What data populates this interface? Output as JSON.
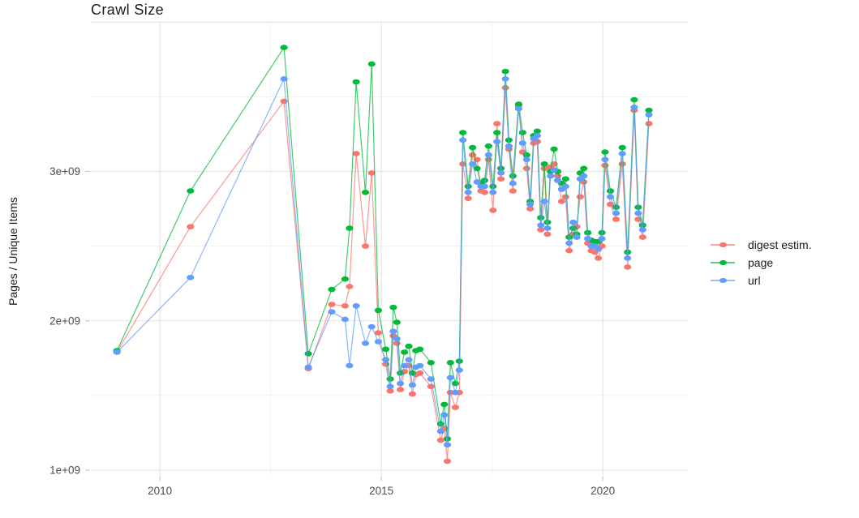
{
  "title": "Crawl Size",
  "chart_data": {
    "type": "line",
    "title": "Crawl Size",
    "xlabel": "",
    "ylabel": "Pages / Unique Items",
    "legend_position": "right",
    "grid": true,
    "x_ticks": [
      {
        "value": 2010,
        "label": "2010"
      },
      {
        "value": 2015,
        "label": "2015"
      },
      {
        "value": 2020,
        "label": "2020"
      }
    ],
    "y_ticks": [
      {
        "value": 1,
        "label": "1e+09"
      },
      {
        "value": 2,
        "label": "2e+09"
      },
      {
        "value": 3,
        "label": "3e+09"
      }
    ],
    "x_minor": [
      2012.5,
      2017.5
    ],
    "y_minor": [
      1.5,
      2.5,
      3.5
    ],
    "y_major_unlabeled": [
      4.0
    ],
    "xlim": [
      2008.44,
      2021.92
    ],
    "ylim_e9": [
      0.962,
      3.996
    ],
    "y_unit": "1e9",
    "x": [
      2009.03,
      2010.69,
      2012.8,
      2013.35,
      2013.88,
      2014.18,
      2014.28,
      2014.43,
      2014.64,
      2014.78,
      2014.93,
      2015.1,
      2015.2,
      2015.27,
      2015.35,
      2015.43,
      2015.52,
      2015.62,
      2015.7,
      2015.78,
      2015.87,
      2016.12,
      2016.34,
      2016.42,
      2016.49,
      2016.56,
      2016.67,
      2016.76,
      2016.84,
      2016.96,
      2017.06,
      2017.16,
      2017.25,
      2017.33,
      2017.42,
      2017.52,
      2017.61,
      2017.7,
      2017.8,
      2017.88,
      2017.97,
      2018.1,
      2018.19,
      2018.28,
      2018.36,
      2018.44,
      2018.52,
      2018.6,
      2018.68,
      2018.75,
      2018.82,
      2018.9,
      2018.98,
      2019.07,
      2019.16,
      2019.24,
      2019.33,
      2019.41,
      2019.49,
      2019.57,
      2019.66,
      2019.74,
      2019.82,
      2019.9,
      2019.98,
      2020.05,
      2020.17,
      2020.3,
      2020.44,
      2020.56,
      2020.71,
      2020.8,
      2020.9,
      2021.04
    ],
    "series": [
      {
        "name": "digest estim.",
        "color": "#F8766D",
        "values": [
          1.79,
          2.63,
          3.47,
          1.68,
          2.11,
          2.1,
          2.23,
          3.12,
          2.5,
          2.99,
          1.92,
          1.71,
          1.53,
          1.9,
          1.85,
          1.54,
          1.66,
          1.7,
          1.51,
          1.64,
          1.65,
          1.56,
          1.2,
          1.28,
          1.06,
          1.52,
          1.42,
          1.52,
          3.05,
          2.82,
          3.11,
          3.08,
          2.87,
          2.86,
          3.08,
          2.74,
          3.32,
          2.95,
          3.56,
          3.15,
          2.87,
          3.44,
          3.13,
          3.02,
          2.75,
          3.19,
          3.2,
          2.61,
          3.02,
          2.58,
          3.03,
          3.05,
          2.97,
          2.8,
          2.83,
          2.47,
          2.58,
          2.63,
          2.83,
          2.93,
          2.52,
          2.47,
          2.46,
          2.42,
          2.5,
          3.04,
          2.78,
          2.68,
          3.05,
          2.36,
          3.41,
          2.68,
          2.56,
          3.32
        ]
      },
      {
        "name": "page",
        "color": "#00BA38",
        "values": [
          1.8,
          2.87,
          3.83,
          1.78,
          2.21,
          2.28,
          2.62,
          3.6,
          2.86,
          3.72,
          2.07,
          1.81,
          1.61,
          2.09,
          1.99,
          1.65,
          1.79,
          1.83,
          1.65,
          1.8,
          1.81,
          1.72,
          1.31,
          1.44,
          1.21,
          1.72,
          1.58,
          1.73,
          3.26,
          2.9,
          3.16,
          3.02,
          2.92,
          2.94,
          3.17,
          2.9,
          3.26,
          3.02,
          3.67,
          3.21,
          2.97,
          3.45,
          3.26,
          3.11,
          2.8,
          3.24,
          3.27,
          2.69,
          3.05,
          2.66,
          3.0,
          3.15,
          3.0,
          2.92,
          2.95,
          2.56,
          2.62,
          2.58,
          2.99,
          3.02,
          2.59,
          2.54,
          2.53,
          2.53,
          2.59,
          3.13,
          2.87,
          2.76,
          3.16,
          2.46,
          3.48,
          2.76,
          2.64,
          3.41
        ]
      },
      {
        "name": "url",
        "color": "#619CFF",
        "values": [
          1.79,
          2.29,
          3.62,
          1.69,
          2.06,
          2.01,
          1.7,
          2.1,
          1.85,
          1.96,
          1.86,
          1.74,
          1.56,
          1.93,
          1.88,
          1.58,
          1.7,
          1.74,
          1.57,
          1.69,
          1.7,
          1.61,
          1.26,
          1.37,
          1.17,
          1.62,
          1.52,
          1.67,
          3.21,
          2.86,
          3.05,
          2.93,
          2.9,
          2.9,
          3.11,
          2.86,
          3.2,
          2.99,
          3.62,
          3.17,
          2.92,
          3.42,
          3.19,
          3.08,
          2.78,
          3.22,
          3.24,
          2.64,
          2.8,
          2.62,
          2.97,
          3.01,
          2.94,
          2.88,
          2.9,
          2.52,
          2.66,
          2.56,
          2.95,
          2.97,
          2.55,
          2.5,
          2.5,
          2.48,
          2.55,
          3.08,
          2.83,
          2.72,
          3.12,
          2.42,
          3.43,
          2.72,
          2.61,
          3.38
        ]
      }
    ]
  },
  "style": {
    "grid_major_color": "#e3e3e3",
    "grid_minor_color": "#f1f1f1",
    "tick_mark_color": "#c9c9c9",
    "tick_label_color": "#4d4d4d",
    "text_color": "#1a1a1a"
  }
}
